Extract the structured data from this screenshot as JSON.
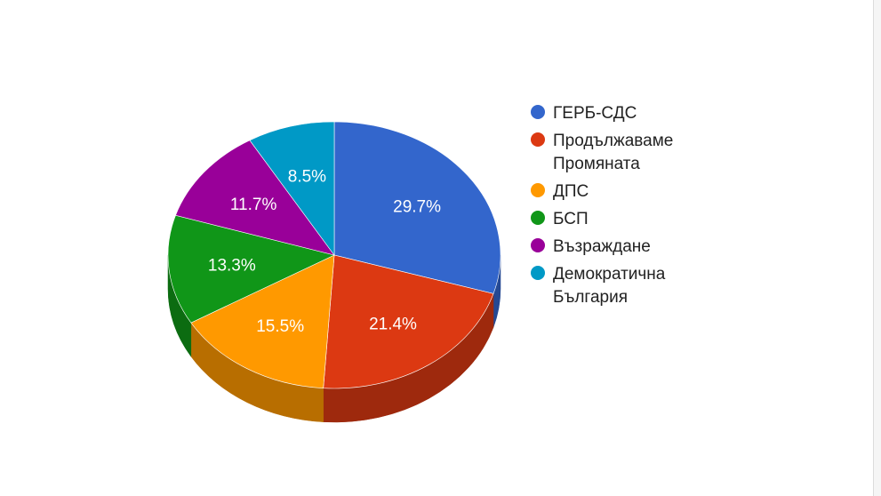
{
  "chart_data": {
    "type": "pie",
    "labels": [
      "ГЕРБ-СДС",
      "Продължаваме Промяната",
      "ДПС",
      "БСП",
      "Възраждане",
      "Демократична България"
    ],
    "legend_lines": [
      [
        "ГЕРБ-СДС"
      ],
      [
        "Продължаваме",
        "Промяната"
      ],
      [
        "ДПС"
      ],
      [
        "БСП"
      ],
      [
        "Възраждане"
      ],
      [
        "Демократична",
        "България"
      ]
    ],
    "values": [
      29.7,
      21.4,
      15.5,
      13.3,
      11.7,
      8.5
    ],
    "value_labels": [
      "29.7%",
      "21.4%",
      "15.5%",
      "13.3%",
      "11.7%",
      "8.5%"
    ],
    "colors": [
      "#3366cc",
      "#dc3912",
      "#ff9900",
      "#109618",
      "#990099",
      "#0099c6"
    ],
    "legend_position": "right",
    "style": "3d"
  }
}
